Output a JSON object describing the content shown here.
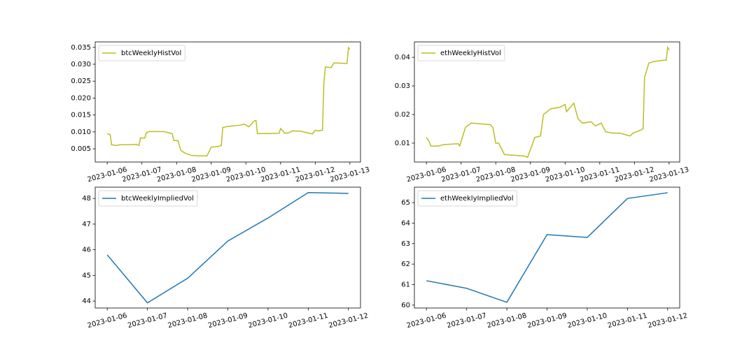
{
  "chart_data": [
    {
      "type": "line",
      "legend": "upper left",
      "x": [
        "2023-01-06 00:00",
        "2023-01-06 02:00",
        "2023-01-06 03:00",
        "2023-01-06 06:00",
        "2023-01-06 09:00",
        "2023-01-06 15:00",
        "2023-01-06 20:00",
        "2023-01-06 22:00",
        "2023-01-06 23:00",
        "2023-01-07 02:00",
        "2023-01-07 03:00",
        "2023-01-07 05:00",
        "2023-01-07 15:00",
        "2023-01-07 18:00",
        "2023-01-07 21:00",
        "2023-01-07 22:00",
        "2023-01-08 01:00",
        "2023-01-08 03:00",
        "2023-01-08 06:00",
        "2023-01-08 10:00",
        "2023-01-08 15:00",
        "2023-01-08 21:00",
        "2023-01-09 00:00",
        "2023-01-09 05:00",
        "2023-01-09 07:00",
        "2023-01-09 08:00",
        "2023-01-09 11:00",
        "2023-01-09 20:00",
        "2023-01-09 23:00",
        "2023-01-10 02:00",
        "2023-01-10 06:00",
        "2023-01-10 07:00",
        "2023-01-10 08:00",
        "2023-01-10 16:00",
        "2023-01-10 23:00",
        "2023-01-11 00:00",
        "2023-01-11 03:00",
        "2023-01-11 06:00",
        "2023-01-11 08:00",
        "2023-01-11 14:00",
        "2023-01-11 22:00",
        "2023-01-12 00:00",
        "2023-01-12 02:00",
        "2023-01-12 05:00",
        "2023-01-12 06:00",
        "2023-01-12 07:00",
        "2023-01-12 11:00",
        "2023-01-12 13:00",
        "2023-01-12 22:00",
        "2023-01-12 23:00",
        "2023-01-13 00:00"
      ],
      "series": [
        {
          "name": "btcWeeklyHistVol",
          "color": "#bcbd22",
          "values": [
            0.0095,
            0.0092,
            0.0062,
            0.006,
            0.0062,
            0.0062,
            0.0063,
            0.006,
            0.0082,
            0.0082,
            0.0097,
            0.0101,
            0.0101,
            0.0098,
            0.0095,
            0.0075,
            0.0074,
            0.0045,
            0.0037,
            0.0031,
            0.0029,
            0.0029,
            0.0055,
            0.0057,
            0.006,
            0.0113,
            0.0116,
            0.012,
            0.0123,
            0.0115,
            0.0133,
            0.0134,
            0.0095,
            0.0095,
            0.0096,
            0.011,
            0.0096,
            0.0098,
            0.0103,
            0.0102,
            0.0094,
            0.0105,
            0.0103,
            0.0105,
            0.0245,
            0.0292,
            0.029,
            0.0304,
            0.0302,
            0.0349,
            0.0345
          ]
        }
      ],
      "xlim": [
        "2023-01-05 15:40",
        "2023-01-13 07:20"
      ],
      "xticks": [
        "2023-01-06",
        "2023-01-07",
        "2023-01-08",
        "2023-01-09",
        "2023-01-10",
        "2023-01-11",
        "2023-01-12",
        "2023-01-13"
      ],
      "ylim": [
        0.0011,
        0.0366
      ],
      "yticks": [
        0.005,
        {
          "value": 0.01,
          "label": "0.010"
        },
        0.015,
        {
          "value": 0.02,
          "label": "0.020"
        },
        0.025,
        {
          "value": 0.03,
          "label": "0.030"
        },
        0.035
      ]
    },
    {
      "type": "line",
      "legend": "upper left",
      "x": [
        "2023-01-06 00:00",
        "2023-01-06 02:00",
        "2023-01-06 03:00",
        "2023-01-06 08:00",
        "2023-01-06 12:00",
        "2023-01-06 22:00",
        "2023-01-06 23:00",
        "2023-01-07 03:00",
        "2023-01-07 07:00",
        "2023-01-07 20:00",
        "2023-01-07 22:00",
        "2023-01-08 00:00",
        "2023-01-08 02:00",
        "2023-01-08 06:00",
        "2023-01-08 20:00",
        "2023-01-08 22:00",
        "2023-01-09 03:00",
        "2023-01-09 07:00",
        "2023-01-09 09:00",
        "2023-01-09 14:00",
        "2023-01-09 20:00",
        "2023-01-10 00:00",
        "2023-01-10 01:00",
        "2023-01-10 06:00",
        "2023-01-10 09:00",
        "2023-01-10 12:00",
        "2023-01-10 18:00",
        "2023-01-10 21:00",
        "2023-01-11 01:00",
        "2023-01-11 04:00",
        "2023-01-11 09:00",
        "2023-01-11 14:00",
        "2023-01-11 21:00",
        "2023-01-11 23:00",
        "2023-01-12 04:00",
        "2023-01-12 06:00",
        "2023-01-12 07:00",
        "2023-01-12 10:00",
        "2023-01-12 13:00",
        "2023-01-12 20:00",
        "2023-01-12 22:00",
        "2023-01-12 23:00",
        "2023-01-13 00:00"
      ],
      "series": [
        {
          "name": "ethWeeklyHistVol",
          "color": "#bcbd22",
          "values": [
            0.012,
            0.0105,
            0.009,
            0.009,
            0.0095,
            0.0098,
            0.009,
            0.0155,
            0.017,
            0.0165,
            0.0155,
            0.01,
            0.01,
            0.006,
            0.0055,
            0.005,
            0.012,
            0.0125,
            0.02,
            0.022,
            0.0225,
            0.0235,
            0.021,
            0.024,
            0.0185,
            0.017,
            0.0175,
            0.016,
            0.017,
            0.014,
            0.0135,
            0.0135,
            0.0125,
            0.0135,
            0.0145,
            0.015,
            0.033,
            0.038,
            0.0385,
            0.039,
            0.039,
            0.0435,
            0.0425
          ]
        }
      ],
      "xlim": [
        "2023-01-05 15:40",
        "2023-01-13 07:20"
      ],
      "xticks": [
        "2023-01-06",
        "2023-01-07",
        "2023-01-08",
        "2023-01-09",
        "2023-01-10",
        "2023-01-11",
        "2023-01-12",
        "2023-01-13"
      ],
      "ylim": [
        0.0034,
        0.0454
      ],
      "yticks": [
        0.01,
        0.02,
        0.03,
        0.04
      ]
    },
    {
      "type": "line",
      "legend": "upper left",
      "x": [
        "2023-01-06",
        "2023-01-07",
        "2023-01-08",
        "2023-01-09",
        "2023-01-10",
        "2023-01-11",
        "2023-01-12"
      ],
      "series": [
        {
          "name": "btcWeeklyImpliedVol",
          "color": "#1f77b4",
          "values": [
            45.8,
            43.93,
            44.89,
            46.34,
            47.24,
            48.23,
            48.2
          ]
        }
      ],
      "xlim": [
        "2023-01-05 16:48",
        "2023-01-12 07:12"
      ],
      "xticks": [
        "2023-01-06",
        "2023-01-07",
        "2023-01-08",
        "2023-01-09",
        "2023-01-10",
        "2023-01-11",
        "2023-01-12"
      ],
      "ylim": [
        43.73,
        48.44
      ],
      "yticks": [
        44,
        45,
        46,
        47,
        48
      ]
    },
    {
      "type": "line",
      "legend": "upper left",
      "x": [
        "2023-01-06",
        "2023-01-07",
        "2023-01-08",
        "2023-01-09",
        "2023-01-10",
        "2023-01-11",
        "2023-01-12"
      ],
      "series": [
        {
          "name": "ethWeeklyImpliedVol",
          "color": "#1f77b4",
          "values": [
            61.19,
            60.82,
            60.14,
            63.44,
            63.3,
            65.2,
            65.48
          ]
        }
      ],
      "xlim": [
        "2023-01-05 16:48",
        "2023-01-12 07:12"
      ],
      "xticks": [
        "2023-01-06",
        "2023-01-07",
        "2023-01-08",
        "2023-01-09",
        "2023-01-10",
        "2023-01-11",
        "2023-01-12"
      ],
      "ylim": [
        59.86,
        65.75
      ],
      "yticks": [
        60,
        61,
        62,
        63,
        64,
        65
      ]
    }
  ]
}
